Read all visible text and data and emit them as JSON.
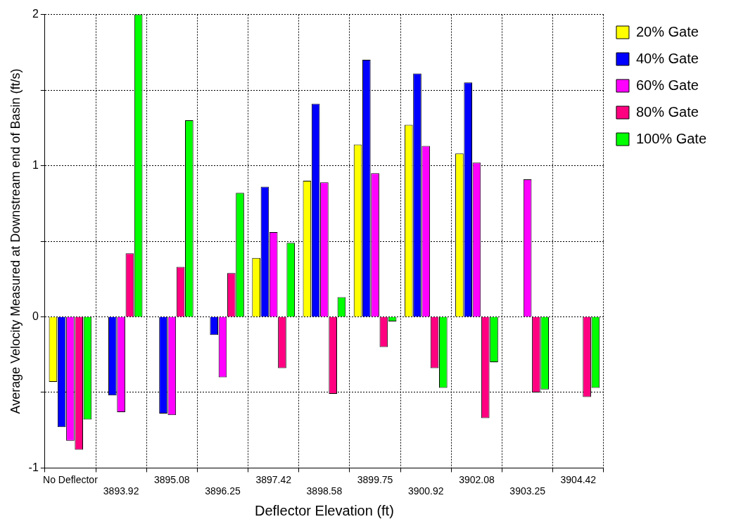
{
  "chart_data": {
    "type": "bar",
    "xlabel": "Deflector Elevation (ft)",
    "ylabel": "Average Velocity Measured at Downstream end of Basin (ft/s)",
    "categories": [
      "No Deflector",
      "3893.92",
      "3895.08",
      "3896.25",
      "3897.42",
      "3898.58",
      "3899.75",
      "3900.92",
      "3902.08",
      "3903.25",
      "3904.42"
    ],
    "series": [
      {
        "name": "20% Gate",
        "color": "#ffff00",
        "values": [
          -0.43,
          null,
          null,
          null,
          0.39,
          0.9,
          1.14,
          1.27,
          1.08,
          null,
          null
        ]
      },
      {
        "name": "40% Gate",
        "color": "#0000ff",
        "values": [
          -0.73,
          -0.52,
          -0.64,
          -0.12,
          0.86,
          1.41,
          1.7,
          1.61,
          1.55,
          null,
          null
        ]
      },
      {
        "name": "60% Gate",
        "color": "#ff00ff",
        "values": [
          -0.82,
          -0.63,
          -0.65,
          -0.4,
          0.56,
          0.89,
          0.95,
          1.13,
          1.02,
          0.91,
          null
        ]
      },
      {
        "name": "80% Gate",
        "color": "#ff0080",
        "values": [
          -0.88,
          0.42,
          0.33,
          0.29,
          -0.34,
          -0.51,
          -0.2,
          -0.34,
          -0.67,
          -0.5,
          -0.53
        ]
      },
      {
        "name": "100% Gate",
        "color": "#00ff00",
        "values": [
          -0.68,
          2.0,
          1.3,
          0.82,
          0.49,
          0.13,
          -0.03,
          -0.47,
          -0.3,
          -0.48,
          -0.47
        ]
      }
    ],
    "ylim": [
      -1,
      2
    ],
    "yticks": [
      -1,
      {
        "value": -0.5,
        "label": null
      },
      0,
      {
        "value": 0.5,
        "label": null
      },
      1,
      {
        "value": 1.5,
        "label": null
      },
      2
    ],
    "grid": true,
    "legend": "top right",
    "line_style": "dotted"
  }
}
